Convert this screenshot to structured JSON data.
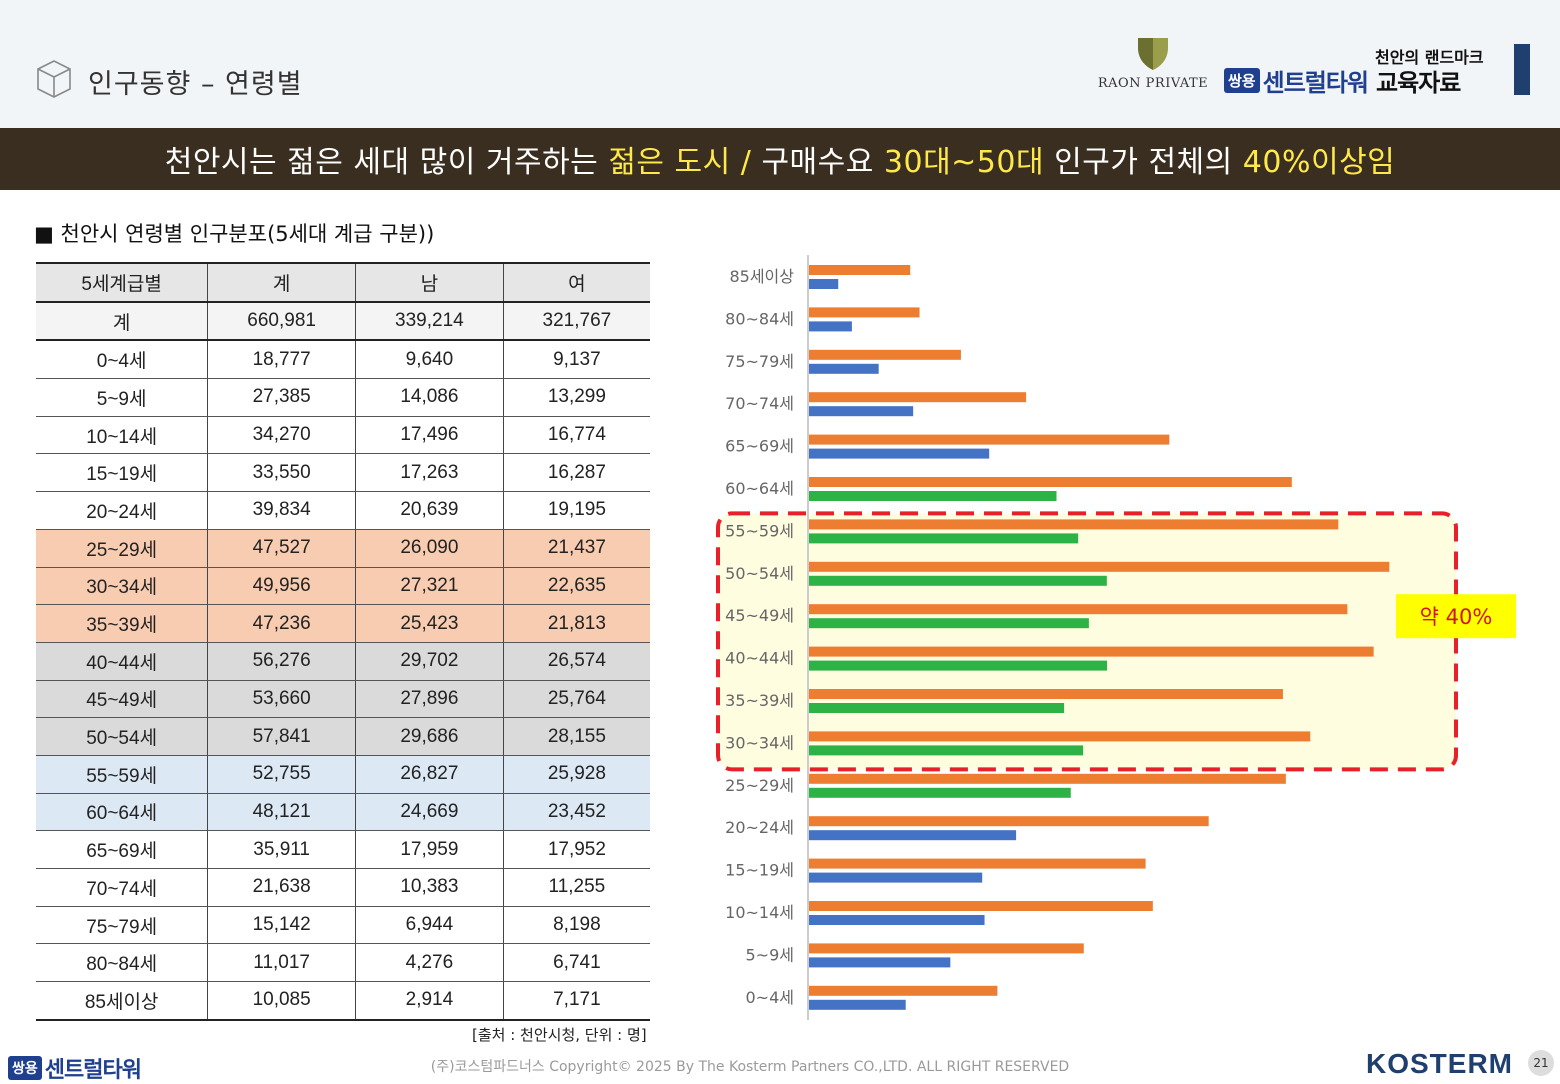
{
  "header": {
    "title": "인구동향 – 연령별",
    "raon_logo_text": "RAON PRIVATE",
    "tagline": "천안의 랜드마크",
    "brand_badge": "쌍용",
    "brand_name": "센트럴타워",
    "brand_sub": "교육자료"
  },
  "banner": {
    "part1": "천안시는 젊은 세대 많이 거주하는 ",
    "hl1": "젊은 도시 /",
    "part2": " 구매수요 ",
    "hl2": "30대~50대",
    "part3": " 인구가 전체의 ",
    "hl3": "40%이상임"
  },
  "section_title": "■ 천안시 연령별 인구분포(5세대 계급 구분))",
  "table": {
    "columns": [
      "5세계급별",
      "계",
      "남",
      "여"
    ],
    "total": {
      "label": "계",
      "total": "660,981",
      "male": "339,214",
      "female": "321,767"
    },
    "rows": [
      {
        "age": "0~4세",
        "total": "18,777",
        "male": "9,640",
        "female": "9,137",
        "tone": ""
      },
      {
        "age": "5~9세",
        "total": "27,385",
        "male": "14,086",
        "female": "13,299",
        "tone": ""
      },
      {
        "age": "10~14세",
        "total": "34,270",
        "male": "17,496",
        "female": "16,774",
        "tone": ""
      },
      {
        "age": "15~19세",
        "total": "33,550",
        "male": "17,263",
        "female": "16,287",
        "tone": ""
      },
      {
        "age": "20~24세",
        "total": "39,834",
        "male": "20,639",
        "female": "19,195",
        "tone": ""
      },
      {
        "age": "25~29세",
        "total": "47,527",
        "male": "26,090",
        "female": "21,437",
        "tone": "peach"
      },
      {
        "age": "30~34세",
        "total": "49,956",
        "male": "27,321",
        "female": "22,635",
        "tone": "peach"
      },
      {
        "age": "35~39세",
        "total": "47,236",
        "male": "25,423",
        "female": "21,813",
        "tone": "peach"
      },
      {
        "age": "40~44세",
        "total": "56,276",
        "male": "29,702",
        "female": "26,574",
        "tone": "gray"
      },
      {
        "age": "45~49세",
        "total": "53,660",
        "male": "27,896",
        "female": "25,764",
        "tone": "gray"
      },
      {
        "age": "50~54세",
        "total": "57,841",
        "male": "29,686",
        "female": "28,155",
        "tone": "gray"
      },
      {
        "age": "55~59세",
        "total": "52,755",
        "male": "26,827",
        "female": "25,928",
        "tone": "blue"
      },
      {
        "age": "60~64세",
        "total": "48,121",
        "male": "24,669",
        "female": "23,452",
        "tone": "blue"
      },
      {
        "age": "65~69세",
        "total": "35,911",
        "male": "17,959",
        "female": "17,952",
        "tone": ""
      },
      {
        "age": "70~74세",
        "total": "21,638",
        "male": "10,383",
        "female": "11,255",
        "tone": ""
      },
      {
        "age": "75~79세",
        "total": "15,142",
        "male": "6,944",
        "female": "8,198",
        "tone": ""
      },
      {
        "age": "80~84세",
        "total": "11,017",
        "male": "4,276",
        "female": "6,741",
        "tone": ""
      },
      {
        "age": "85세이상",
        "total": "10,085",
        "male": "2,914",
        "female": "7,171",
        "tone": ""
      }
    ]
  },
  "source": "[출처 : 천안시청, 단위 : 명]",
  "chart_data": {
    "type": "bar",
    "orientation": "horizontal",
    "categories": [
      "85세이상",
      "80~84세",
      "75~79세",
      "70~74세",
      "65~69세",
      "60~64세",
      "55~59세",
      "50~54세",
      "45~49세",
      "40~44세",
      "35~39세",
      "30~34세",
      "25~29세",
      "20~24세",
      "15~19세",
      "10~14세",
      "5~9세",
      "0~4세"
    ],
    "series": [
      {
        "values": [
          10085,
          11017,
          15142,
          21638,
          35911,
          48121,
          52755,
          57841,
          53660,
          56276,
          47236,
          49956,
          47527,
          39834,
          33550,
          34270,
          27385,
          18777
        ],
        "color": "#ed7d31"
      },
      {
        "values": [
          2914,
          4276,
          6944,
          10383,
          17959,
          24669,
          26827,
          29686,
          27896,
          29702,
          25423,
          27321,
          26090,
          20639,
          17263,
          17496,
          14086,
          9640
        ]
      }
    ],
    "second_bar_colors": [
      "#4472c4",
      "#4472c4",
      "#4472c4",
      "#4472c4",
      "#4472c4",
      "#2db345",
      "#2db345",
      "#2db345",
      "#2db345",
      "#2db345",
      "#2db345",
      "#2db345",
      "#2db345",
      "#4472c4",
      "#4472c4",
      "#4472c4",
      "#4472c4",
      "#4472c4"
    ],
    "highlight_label": "약 40%",
    "highlight_categories": [
      "55~59세",
      "30~34세"
    ],
    "grid": false
  },
  "footer": {
    "brand_badge": "쌍용",
    "brand_name": "센트럴타워",
    "copyright": "(주)코스텀파드너스 Copyright© 2025 By The Kosterm Partners CO.,LTD. ALL RIGHT RESERVED",
    "kosterm": "KOSTERM",
    "page": "21"
  }
}
